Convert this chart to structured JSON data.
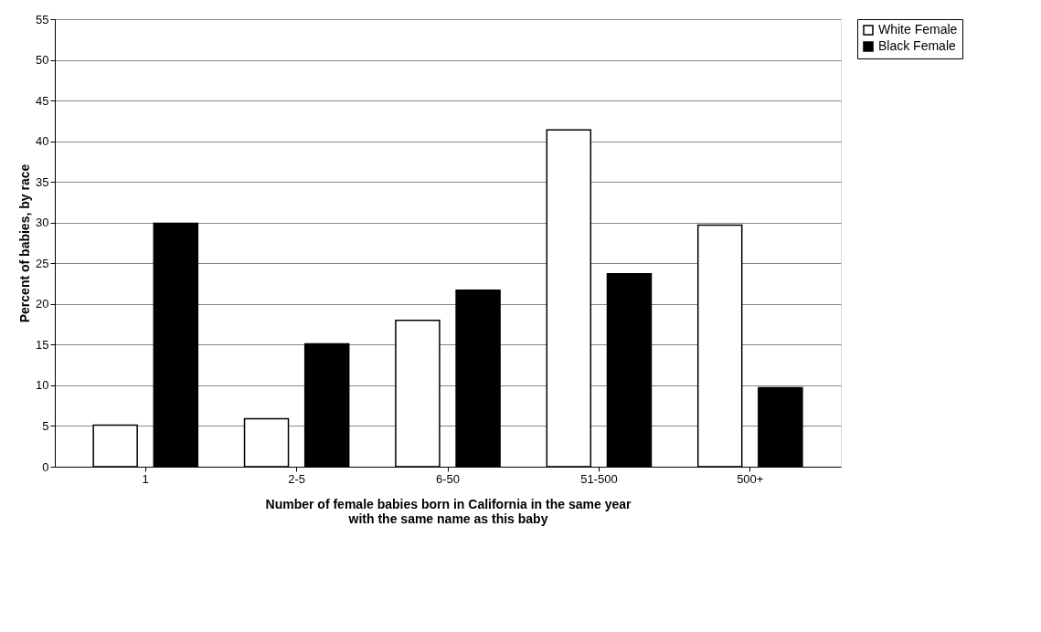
{
  "chart_data": {
    "type": "bar",
    "categories": [
      "1",
      "2-5",
      "6-50",
      "51-500",
      "500+"
    ],
    "series": [
      {
        "name": "White Female",
        "color": "#ffffff",
        "values": [
          5.1,
          5.9,
          18.0,
          41.4,
          29.7
        ]
      },
      {
        "name": "Black Female",
        "color": "#000000",
        "values": [
          29.9,
          15.1,
          21.7,
          23.7,
          9.7
        ]
      }
    ],
    "xlabel": "Number of female babies born in California in the same year\nwith the same name as this baby",
    "ylabel": "Percent of babies, by race",
    "ylim": [
      0,
      55
    ],
    "yticks": [
      0,
      5,
      10,
      15,
      20,
      25,
      30,
      35,
      40,
      45,
      50,
      55
    ],
    "grid": "y",
    "legend": "right"
  }
}
